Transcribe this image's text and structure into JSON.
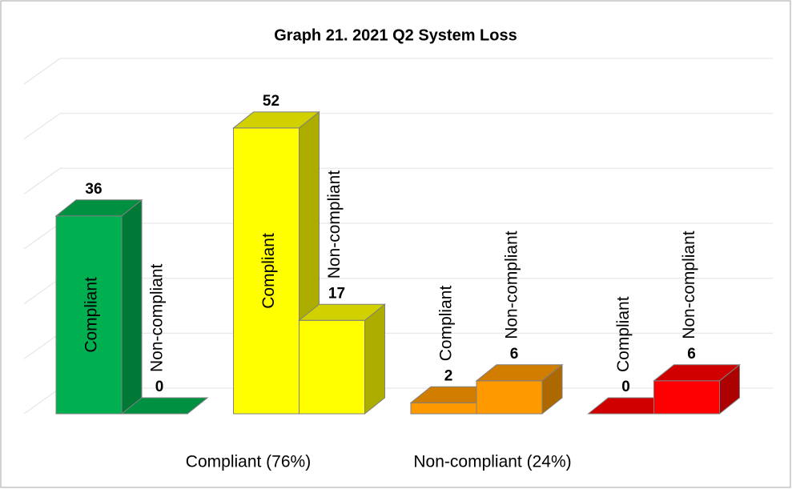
{
  "chart_data": {
    "type": "bar",
    "title": "Graph 21. 2021 Q2 System Loss",
    "categories": [
      "Compliant",
      "Non-compliant"
    ],
    "series": [
      {
        "color": "#00b050",
        "values": [
          36,
          0
        ]
      },
      {
        "color": "#ffff00",
        "values": [
          52,
          17
        ]
      },
      {
        "color": "#ff9900",
        "values": [
          2,
          6
        ]
      },
      {
        "color": "#ff0000",
        "values": [
          0,
          6
        ]
      }
    ],
    "group_labels": [
      "Compliant (76%)",
      "Non-compliant (24%)"
    ],
    "ylim": [
      0,
      60
    ],
    "yticks": [
      0,
      10,
      20,
      30,
      40,
      50,
      60
    ],
    "grid": true
  }
}
